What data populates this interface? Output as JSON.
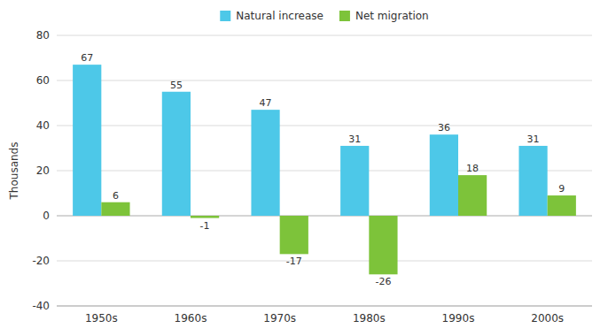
{
  "chart_data": {
    "type": "bar",
    "categories": [
      "1950s",
      "1960s",
      "1970s",
      "1980s",
      "1990s",
      "2000s"
    ],
    "series": [
      {
        "name": "Natural increase",
        "color": "#4DC8E8",
        "values": [
          67,
          55,
          47,
          31,
          36,
          31
        ]
      },
      {
        "name": "Net migration",
        "color": "#7DC33A",
        "values": [
          6,
          -1,
          -17,
          -26,
          18,
          9
        ]
      }
    ],
    "ylabel": "Thousands",
    "ylim": [
      -40,
      80
    ],
    "yticks": [
      -40,
      -20,
      0,
      20,
      40,
      60,
      80
    ],
    "grid": true,
    "legend": "top",
    "data_labels": true
  }
}
